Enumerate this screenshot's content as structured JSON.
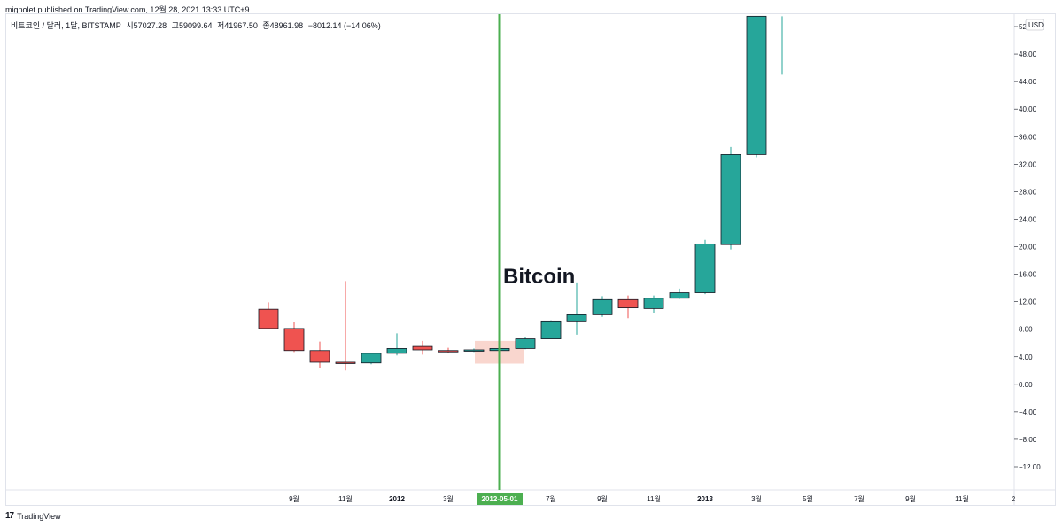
{
  "header": {
    "published": "mignolet published on TradingView.com, 12월 28, 2021 13:33 UTC+9"
  },
  "legend": {
    "symbol": "비트코인 / 달러, 1달, BITSTAMP",
    "open": "시57027.28",
    "high": "고59099.64",
    "low": "저41967.50",
    "close": "종48961.98",
    "change": "−8012.14 (−14.06%)"
  },
  "footer": {
    "logo": "17",
    "brand": "TradingView"
  },
  "chart_data": {
    "type": "candlestick",
    "currency": "USD",
    "annotation": "Bitcoin",
    "crosshair_label": "2012-05-01",
    "ylim": [
      -14,
      53
    ],
    "y_ticks": [
      "52.00",
      "48.00",
      "44.00",
      "40.00",
      "36.00",
      "32.00",
      "28.00",
      "24.00",
      "20.00",
      "16.00",
      "12.00",
      "8.00",
      "4.00",
      "0.00",
      "−4.00",
      "−8.00",
      "−12.00"
    ],
    "y_tick_values": [
      52,
      48,
      44,
      40,
      36,
      32,
      28,
      24,
      20,
      16,
      12,
      8,
      4,
      0,
      -4,
      -8,
      -12
    ],
    "x_ticks": [
      {
        "label": "9월",
        "index": 1
      },
      {
        "label": "11월",
        "index": 3
      },
      {
        "label": "2012",
        "index": 5,
        "bold": true
      },
      {
        "label": "3월",
        "index": 7
      },
      {
        "label": "7월",
        "index": 11
      },
      {
        "label": "9월",
        "index": 13
      },
      {
        "label": "11월",
        "index": 15
      },
      {
        "label": "2013",
        "index": 17,
        "bold": true
      },
      {
        "label": "3월",
        "index": 19
      },
      {
        "label": "5월",
        "index": 21
      },
      {
        "label": "7월",
        "index": 23
      },
      {
        "label": "9월",
        "index": 25
      },
      {
        "label": "11월",
        "index": 27
      },
      {
        "label": "2",
        "index": 29
      }
    ],
    "crosshair_index": 9,
    "highlight_index": 9,
    "candles": [
      {
        "month": "2011-08",
        "open": 10.9,
        "high": 11.9,
        "low": 8.0,
        "close": 8.1
      },
      {
        "month": "2011-09",
        "open": 8.1,
        "high": 9.0,
        "low": 4.7,
        "close": 4.9
      },
      {
        "month": "2011-10",
        "open": 4.9,
        "high": 6.2,
        "low": 2.3,
        "close": 3.2
      },
      {
        "month": "2011-11",
        "open": 3.2,
        "high": 15.0,
        "low": 2.0,
        "close": 3.1
      },
      {
        "month": "2011-12",
        "open": 3.1,
        "high": 4.6,
        "low": 2.9,
        "close": 4.5
      },
      {
        "month": "2012-01",
        "open": 4.5,
        "high": 7.4,
        "low": 4.2,
        "close": 5.2
      },
      {
        "month": "2012-02",
        "open": 5.5,
        "high": 6.3,
        "low": 4.3,
        "close": 5.0
      },
      {
        "month": "2012-03",
        "open": 4.9,
        "high": 5.3,
        "low": 4.6,
        "close": 4.8
      },
      {
        "month": "2012-04",
        "open": 4.9,
        "high": 5.2,
        "low": 4.7,
        "close": 5.0
      },
      {
        "month": "2012-05",
        "open": 4.9,
        "high": 5.3,
        "low": 4.8,
        "close": 5.2
      },
      {
        "month": "2012-06",
        "open": 5.2,
        "high": 6.8,
        "low": 5.1,
        "close": 6.6
      },
      {
        "month": "2012-07",
        "open": 6.6,
        "high": 9.3,
        "low": 6.6,
        "close": 9.2
      },
      {
        "month": "2012-08",
        "open": 9.2,
        "high": 14.8,
        "low": 7.2,
        "close": 10.1
      },
      {
        "month": "2012-09",
        "open": 10.1,
        "high": 12.8,
        "low": 9.8,
        "close": 12.3
      },
      {
        "month": "2012-10",
        "open": 12.3,
        "high": 12.9,
        "low": 9.6,
        "close": 11.1
      },
      {
        "month": "2012-11",
        "open": 11.0,
        "high": 12.9,
        "low": 10.4,
        "close": 12.5
      },
      {
        "month": "2012-12",
        "open": 12.5,
        "high": 13.9,
        "low": 12.4,
        "close": 13.3
      },
      {
        "month": "2013-01",
        "open": 13.3,
        "high": 21.0,
        "low": 13.1,
        "close": 20.4
      },
      {
        "month": "2013-02",
        "open": 20.3,
        "high": 34.5,
        "low": 19.6,
        "close": 33.4
      },
      {
        "month": "2013-03",
        "open": 33.4,
        "high": 53.5,
        "low": 33.0,
        "close": 53.5
      },
      {
        "month": "2013-04",
        "open": 53.5,
        "high": 53.5,
        "low": 45.0,
        "close": 53.5
      }
    ],
    "colors": {
      "up": "#26a69a",
      "down": "#ef5350",
      "crosshair": "#4caf50",
      "highlight": "#f8cfc5",
      "axis_text": "#131722",
      "grid_border": "#e0e3eb"
    }
  }
}
